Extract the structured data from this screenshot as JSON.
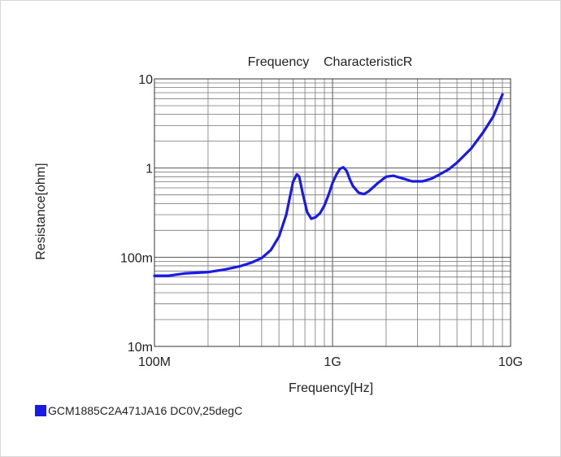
{
  "chart_data": {
    "type": "line",
    "title": "Frequency    CharacteristicR",
    "xlabel": "Frequency[Hz]",
    "ylabel": "Resistance[ohm]",
    "x_scale": "log",
    "y_scale": "log",
    "xlim": [
      100000000,
      10000000000
    ],
    "ylim": [
      0.01,
      10
    ],
    "x_ticks": [
      {
        "value": 100000000,
        "label": "100M"
      },
      {
        "value": 1000000000,
        "label": "1G"
      },
      {
        "value": 10000000000,
        "label": "10G"
      }
    ],
    "y_ticks": [
      {
        "value": 0.01,
        "label": "10m"
      },
      {
        "value": 0.1,
        "label": "100m"
      },
      {
        "value": 1,
        "label": "1"
      },
      {
        "value": 10,
        "label": "10"
      }
    ],
    "grid": true,
    "legend_position": "bottom-left",
    "series": [
      {
        "name": "GCM1885C2A471JA16 DC0V,25degC",
        "color": "#1a1ae6",
        "x": [
          100000000,
          120000000,
          150000000,
          200000000,
          250000000,
          300000000,
          350000000,
          400000000,
          450000000,
          500000000,
          550000000,
          600000000,
          630000000,
          650000000,
          680000000,
          720000000,
          760000000,
          800000000,
          850000000,
          900000000,
          950000000,
          1000000000,
          1050000000,
          1100000000,
          1150000000,
          1200000000,
          1250000000,
          1300000000,
          1400000000,
          1500000000,
          1600000000,
          1800000000,
          2000000000,
          2200000000,
          2500000000,
          2800000000,
          3200000000,
          3600000000,
          4000000000,
          4500000000,
          5000000000,
          6000000000,
          7000000000,
          8000000000,
          9000000000
        ],
        "y": [
          0.062,
          0.062,
          0.066,
          0.068,
          0.073,
          0.079,
          0.087,
          0.098,
          0.12,
          0.17,
          0.3,
          0.7,
          0.85,
          0.8,
          0.52,
          0.32,
          0.27,
          0.28,
          0.31,
          0.38,
          0.5,
          0.68,
          0.84,
          0.98,
          1.02,
          0.93,
          0.75,
          0.63,
          0.53,
          0.51,
          0.55,
          0.68,
          0.8,
          0.82,
          0.76,
          0.71,
          0.71,
          0.76,
          0.85,
          0.97,
          1.15,
          1.65,
          2.5,
          3.8,
          6.7
        ]
      }
    ]
  }
}
